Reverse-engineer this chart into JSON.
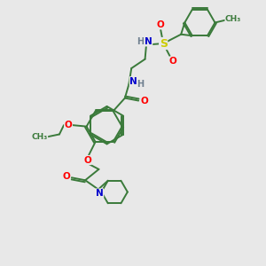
{
  "bg_color": "#e8e8e8",
  "bond_color": "#3a7a3a",
  "atom_colors": {
    "O": "#ff0000",
    "N": "#0000cc",
    "S": "#cccc00",
    "H": "#708090",
    "C": "#3a7a3a"
  }
}
